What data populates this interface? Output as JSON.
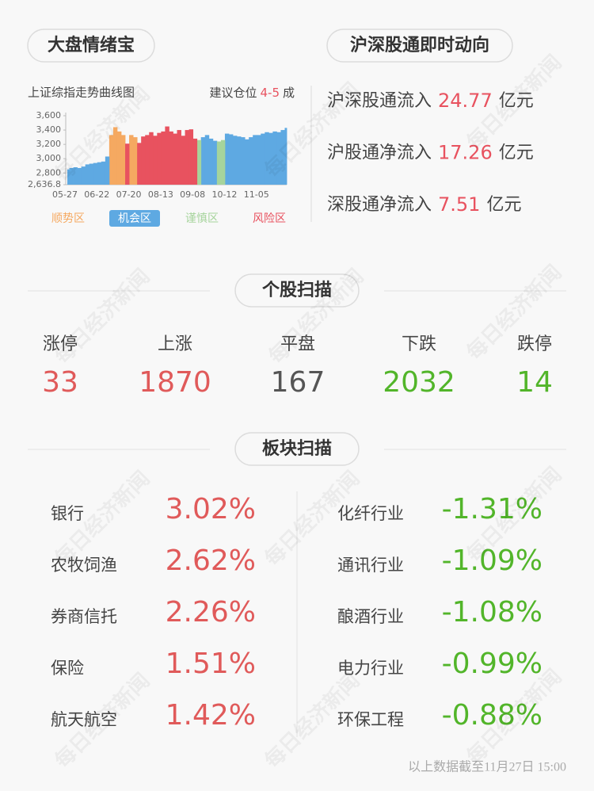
{
  "mood": {
    "title": "大盘情绪宝",
    "subtitle": "上证综指走势曲线图",
    "advice_label": "建议仓位",
    "advice_value": "4-5",
    "advice_unit": "成"
  },
  "chart_data": {
    "type": "zone-area",
    "categories": [
      "05-27",
      null,
      null,
      null,
      null,
      null,
      null,
      null,
      "06-22",
      null,
      null,
      null,
      null,
      null,
      null,
      null,
      "07-20",
      null,
      null,
      null,
      null,
      null,
      null,
      null,
      "08-13",
      null,
      null,
      null,
      null,
      null,
      null,
      null,
      "09-08",
      null,
      null,
      null,
      null,
      null,
      null,
      null,
      "10-12",
      null,
      null,
      null,
      null,
      null,
      null,
      null,
      "11-05",
      null,
      null,
      null,
      null,
      null,
      null,
      null
    ],
    "ylim": [
      2636.8,
      3600
    ],
    "yticks": [
      {
        "value": 2636.8,
        "label": "2,636.8"
      },
      {
        "value": 2800,
        "label": "2,800"
      },
      {
        "value": 3000,
        "label": "3,000"
      },
      {
        "value": 3200,
        "label": "3,200"
      },
      {
        "value": 3400,
        "label": "3,400"
      },
      {
        "value": 3600,
        "label": "3,600"
      }
    ],
    "series": [
      {
        "name": "顺势区",
        "color": "#f5a961",
        "values": [
          null,
          null,
          null,
          null,
          null,
          null,
          null,
          null,
          null,
          null,
          null,
          3330,
          3440,
          3380,
          3330,
          null,
          3330,
          3300,
          null,
          null,
          null,
          null,
          null,
          null,
          null,
          null,
          null,
          null,
          null,
          null,
          null,
          null,
          null,
          null,
          null,
          null,
          null,
          null,
          null,
          null,
          null,
          null,
          null,
          null,
          null,
          null,
          null,
          null,
          null,
          null,
          null,
          null,
          null,
          null,
          null,
          null
        ]
      },
      {
        "name": "机会区",
        "color": "#5ea9e2",
        "values": [
          2850,
          2870,
          2880,
          2870,
          2890,
          2920,
          2930,
          2940,
          2950,
          2960,
          3030,
          null,
          null,
          null,
          null,
          null,
          null,
          null,
          null,
          null,
          null,
          null,
          null,
          null,
          null,
          null,
          null,
          null,
          null,
          null,
          null,
          null,
          null,
          null,
          3300,
          3330,
          3280,
          3250,
          null,
          null,
          3350,
          3340,
          3320,
          3310,
          3300,
          3270,
          3300,
          3330,
          3330,
          3350,
          3370,
          3360,
          3380,
          3370,
          3400,
          3430
        ]
      },
      {
        "name": "谨慎区",
        "color": "#a6d49c",
        "values": [
          null,
          null,
          null,
          null,
          null,
          null,
          null,
          null,
          null,
          null,
          null,
          null,
          null,
          null,
          null,
          null,
          null,
          null,
          null,
          null,
          null,
          null,
          null,
          null,
          null,
          null,
          null,
          null,
          null,
          null,
          null,
          null,
          null,
          3260,
          null,
          null,
          null,
          null,
          3240,
          3260,
          null,
          null,
          null,
          null,
          null,
          null,
          null,
          null,
          null,
          null,
          null,
          null,
          null,
          null,
          null,
          null
        ]
      },
      {
        "name": "风险区",
        "color": "#e8525f",
        "values": [
          null,
          null,
          null,
          null,
          null,
          null,
          null,
          null,
          null,
          null,
          null,
          null,
          null,
          null,
          null,
          3210,
          null,
          null,
          3220,
          3310,
          3330,
          3370,
          3320,
          3360,
          3380,
          3450,
          3380,
          3350,
          3400,
          3320,
          3400,
          3410,
          3280,
          null,
          null,
          null,
          null,
          null,
          null,
          null,
          null,
          null,
          null,
          null,
          null,
          null,
          null,
          null,
          null,
          null,
          null,
          null,
          null,
          null,
          null,
          null
        ]
      }
    ]
  },
  "flow": {
    "title": "沪深股通即时动向",
    "items": [
      {
        "label": "沪深股通流入",
        "value": 24.77,
        "unit": "亿元"
      },
      {
        "label": "沪股通净流入",
        "value": 17.26,
        "unit": "亿元"
      },
      {
        "label": "深股通净流入",
        "value": 7.51,
        "unit": "亿元"
      }
    ]
  },
  "stocks": {
    "title": "个股扫描",
    "items": [
      {
        "label": "涨停",
        "value": 33,
        "color": "#e05a5a"
      },
      {
        "label": "上涨",
        "value": 1870,
        "color": "#e05a5a"
      },
      {
        "label": "平盘",
        "value": 167,
        "color": "#555555"
      },
      {
        "label": "下跌",
        "value": 2032,
        "color": "#52b52a"
      },
      {
        "label": "跌停",
        "value": 14,
        "color": "#52b52a"
      }
    ]
  },
  "sectors": {
    "title": "板块扫描",
    "up": {
      "color": "#e05a5a",
      "rows": [
        [
          "银行",
          "3.02%"
        ],
        [
          "农牧饲渔",
          "2.62%"
        ],
        [
          "券商信托",
          "2.26%"
        ],
        [
          "保险",
          "1.51%"
        ],
        [
          "航天航空",
          "1.42%"
        ]
      ]
    },
    "down": {
      "color": "#52b52a",
      "rows": [
        [
          "化纤行业",
          "-1.31%"
        ],
        [
          "通讯行业",
          "-1.09%"
        ],
        [
          "酿酒行业",
          "-1.08%"
        ],
        [
          "电力行业",
          "-0.99%"
        ],
        [
          "环保工程",
          "-0.88%"
        ]
      ]
    }
  },
  "footer": "以上数据截至11月27日 15:00",
  "watermark": "每日经济新闻"
}
